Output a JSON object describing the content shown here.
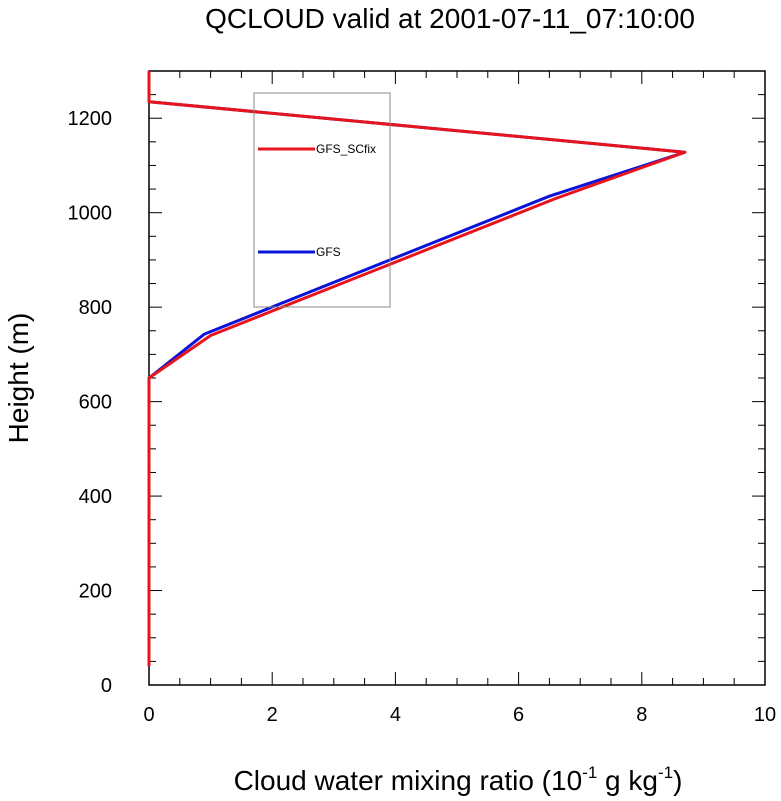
{
  "chart_data": {
    "type": "line",
    "title": "QCLOUD valid at 2001-07-11_07:10:00",
    "xlabel": "Cloud water mixing ratio (10",
    "xlabel_exp1": "-1",
    "xlabel_mid": " g kg",
    "xlabel_exp2": "-1",
    "xlabel_end": ")",
    "ylabel": "Height (m)",
    "xlim": [
      0,
      10
    ],
    "ylim": [
      0,
      1300
    ],
    "xticks": [
      0,
      2,
      4,
      6,
      8,
      10
    ],
    "yticks": [
      0,
      200,
      400,
      600,
      800,
      1000,
      1200
    ],
    "grid": false,
    "legend_position": "top-left inside",
    "series": [
      {
        "name": "GFS_SCfix",
        "color": "#e8141c",
        "points": [
          [
            0,
            40
          ],
          [
            0,
            650
          ],
          [
            1.0,
            740
          ],
          [
            6.6,
            1030
          ],
          [
            8.7,
            1128
          ],
          [
            0,
            1235
          ],
          [
            0,
            1300
          ]
        ]
      },
      {
        "name": "GFS",
        "color": "#0a14d8",
        "points": [
          [
            0,
            40
          ],
          [
            0,
            650
          ],
          [
            0.9,
            743
          ],
          [
            6.5,
            1035
          ],
          [
            8.7,
            1128
          ],
          [
            0,
            1235
          ],
          [
            0,
            1300
          ]
        ]
      }
    ]
  }
}
